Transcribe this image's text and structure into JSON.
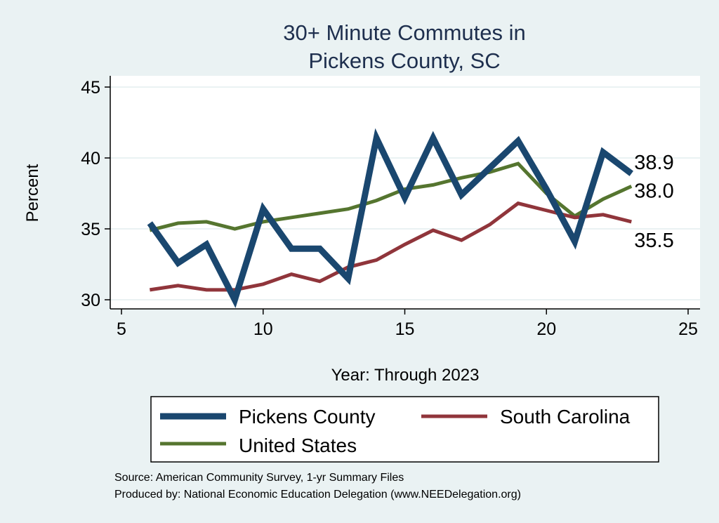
{
  "chart_data": {
    "type": "line",
    "title": [
      "30+ Minute Commutes in",
      "Pickens County, SC"
    ],
    "xlabel": "Year: Through 2023",
    "ylabel": "Percent",
    "xlim": [
      5,
      25
    ],
    "ylim": [
      30,
      45
    ],
    "xticks": [
      5,
      10,
      15,
      20,
      25
    ],
    "yticks": [
      30,
      35,
      40,
      45
    ],
    "grid": true,
    "x": [
      6,
      7,
      8,
      9,
      10,
      11,
      12,
      13,
      14,
      15,
      16,
      17,
      18,
      19,
      20,
      21,
      22,
      23
    ],
    "series": [
      {
        "name": "Pickens County",
        "color": "#1a476f",
        "width": 9,
        "values": [
          35.4,
          32.6,
          33.9,
          30.0,
          36.4,
          33.6,
          33.6,
          31.5,
          41.4,
          37.2,
          41.4,
          37.4,
          39.3,
          41.2,
          37.8,
          34.1,
          40.4,
          38.9
        ],
        "end_label": "38.9"
      },
      {
        "name": "South Carolina",
        "color": "#90353b",
        "width": 5,
        "values": [
          30.7,
          31.0,
          30.7,
          30.7,
          31.1,
          31.8,
          31.3,
          32.3,
          32.8,
          33.9,
          34.9,
          34.2,
          35.3,
          36.8,
          36.3,
          35.8,
          36.0,
          35.5
        ],
        "end_label": "35.5"
      },
      {
        "name": "United States",
        "color": "#55752f",
        "width": 5,
        "values": [
          34.9,
          35.4,
          35.5,
          35.0,
          35.5,
          35.8,
          36.1,
          36.4,
          37.0,
          37.8,
          38.1,
          38.6,
          39.0,
          39.6,
          37.5,
          35.9,
          37.1,
          38.0
        ],
        "end_label": "38.0"
      }
    ],
    "legend_placement": "bottom"
  },
  "notes": {
    "source": "Source: American Community Survey, 1-yr Summary Files",
    "produced": "Produced by: National Economic Education Delegation (www.NEEDelegation.org)"
  }
}
